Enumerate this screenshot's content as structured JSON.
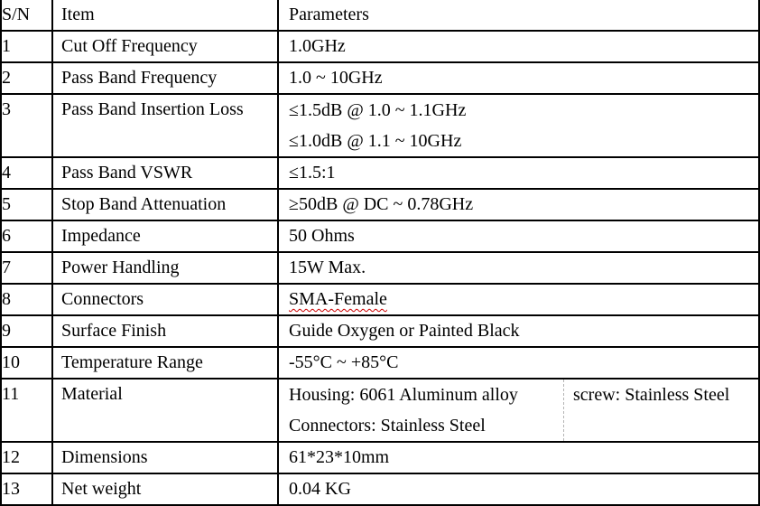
{
  "table": {
    "headers": {
      "sn": "S/N",
      "item": "Item",
      "parameters": "Parameters"
    },
    "rows": [
      {
        "sn": "1",
        "item": "Cut Off Frequency",
        "params": [
          "1.0GHz"
        ]
      },
      {
        "sn": "2",
        "item": "Pass Band Frequency",
        "params": [
          "1.0 ~ 10GHz"
        ]
      },
      {
        "sn": "3",
        "item": "Pass Band Insertion Loss",
        "params": [
          "≤1.5dB @ 1.0 ~ 1.1GHz",
          "≤1.0dB @ 1.1 ~ 10GHz"
        ]
      },
      {
        "sn": "4",
        "item": "Pass Band VSWR",
        "params": [
          "≤1.5:1"
        ]
      },
      {
        "sn": "5",
        "item": "Stop Band Attenuation",
        "params": [
          "≥50dB @ DC ~ 0.78GHz"
        ]
      },
      {
        "sn": "6",
        "item": "Impedance",
        "params": [
          "50 Ohms"
        ]
      },
      {
        "sn": "7",
        "item": "Power Handling",
        "params": [
          "15W Max."
        ]
      },
      {
        "sn": "8",
        "item": "Connectors",
        "params": [
          "SMA-Female"
        ],
        "spellcheck_flagged": true
      },
      {
        "sn": "9",
        "item": "Surface Finish",
        "params": [
          "Guide Oxygen or Painted Black"
        ]
      },
      {
        "sn": "10",
        "item": "Temperature Range",
        "params": [
          "-55°C ~ +85°C"
        ]
      },
      {
        "sn": "11",
        "item": "Material",
        "params_left": [
          "Housing: 6061 Aluminum alloy",
          "Connectors: Stainless Steel"
        ],
        "params_right": "screw: Stainless Steel"
      },
      {
        "sn": "12",
        "item": "Dimensions",
        "params": [
          "61*23*10mm"
        ]
      },
      {
        "sn": "13",
        "item": "Net weight",
        "params": [
          "0.04 KG"
        ]
      }
    ]
  },
  "colors": {
    "text": "#000000",
    "grid_border": "#000000",
    "spellcheck_underline": "#cc0000",
    "sub_divider_dashed": "#b5b5b5",
    "background": "#ffffff"
  }
}
